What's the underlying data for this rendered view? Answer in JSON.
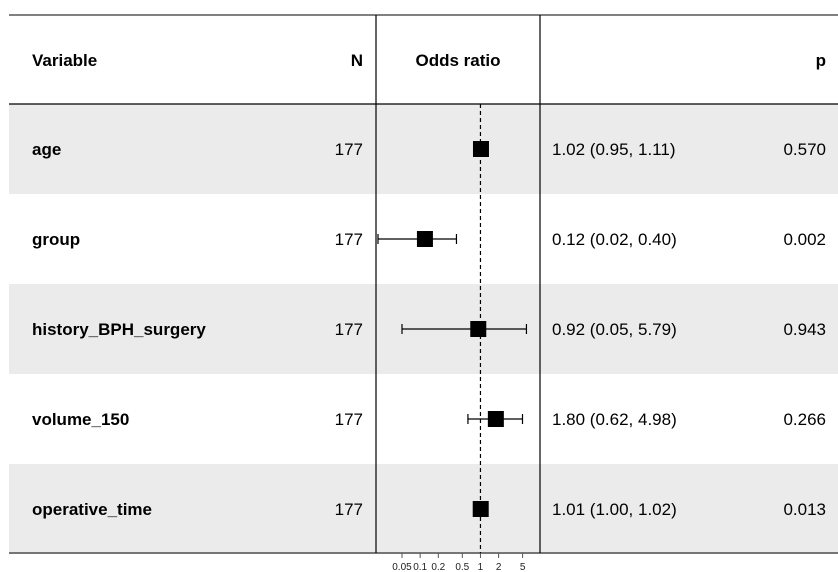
{
  "headers": {
    "variable": "Variable",
    "n": "N",
    "odds_ratio": "Odds ratio",
    "ci": "",
    "p": "p"
  },
  "rows": [
    {
      "variable": "age",
      "n": "177",
      "estimate_text": "1.02 (0.95, 1.11)",
      "p": "0.570"
    },
    {
      "variable": "group",
      "n": "177",
      "estimate_text": "0.12 (0.02, 0.40)",
      "p": "0.002"
    },
    {
      "variable": "history_BPH_surgery",
      "n": "177",
      "estimate_text": "0.92 (0.05, 5.79)",
      "p": "0.943"
    },
    {
      "variable": "volume_150",
      "n": "177",
      "estimate_text": "1.80 (0.62, 4.98)",
      "p": "0.266"
    },
    {
      "variable": "operative_time",
      "n": "177",
      "estimate_text": "1.01 (1.00, 1.02)",
      "p": "0.013"
    }
  ],
  "chart_data": {
    "type": "scatter",
    "subtype": "forest",
    "scale": "log",
    "reference_line": 1,
    "xlim": [
      0.02,
      9
    ],
    "ticks": [
      "0.05",
      "0.1",
      "0.2",
      "0.5",
      "1",
      "2",
      "5"
    ],
    "series": [
      {
        "categories": [
          "age",
          "group",
          "history_BPH_surgery",
          "volume_150",
          "operative_time"
        ],
        "estimate": [
          1.02,
          0.12,
          0.92,
          1.8,
          1.01
        ],
        "lower": [
          0.95,
          0.02,
          0.05,
          0.62,
          1.0
        ],
        "upper": [
          1.11,
          0.4,
          5.79,
          4.98,
          1.02
        ]
      }
    ],
    "colors": {
      "stripe": "#ebebeb",
      "marker": "#000000"
    }
  }
}
